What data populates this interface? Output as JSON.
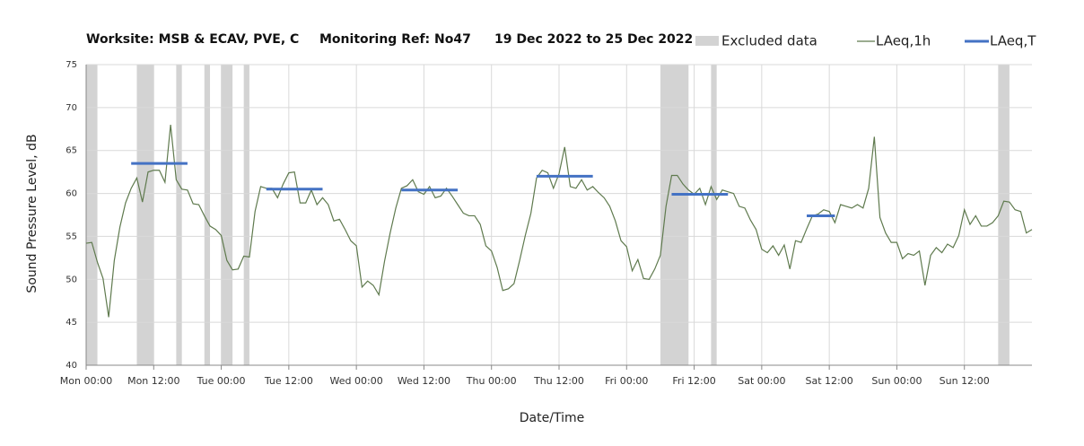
{
  "chart_data": {
    "type": "line",
    "title": [
      "Worksite: MSB & ECAV, PVE, C",
      "Monitoring Ref: No47",
      "19 Dec 2022 to 25 Dec 2022"
    ],
    "x_label": "Date/Time",
    "y_label": "Sound Pressure Level, dB",
    "xlim": [
      0,
      168
    ],
    "xticks": [
      {
        "value": 0,
        "label": "Mon 00:00"
      },
      {
        "value": 12,
        "label": "Mon 12:00"
      },
      {
        "value": 24,
        "label": "Tue 00:00"
      },
      {
        "value": 36,
        "label": "Tue 12:00"
      },
      {
        "value": 48,
        "label": "Wed 00:00"
      },
      {
        "value": 60,
        "label": "Wed 12:00"
      },
      {
        "value": 72,
        "label": "Thu 00:00"
      },
      {
        "value": 84,
        "label": "Thu 12:00"
      },
      {
        "value": 96,
        "label": "Fri 00:00"
      },
      {
        "value": 108,
        "label": "Fri 12:00"
      },
      {
        "value": 120,
        "label": "Sat 00:00"
      },
      {
        "value": 132,
        "label": "Sat 12:00"
      },
      {
        "value": 144,
        "label": "Sun 00:00"
      },
      {
        "value": 156,
        "label": "Sun 12:00"
      }
    ],
    "ylim": [
      40,
      75
    ],
    "yticks": [
      40,
      45,
      50,
      55,
      60,
      65,
      70,
      75
    ],
    "grid": true,
    "excluded": {
      "name": "Excluded data",
      "color": "#d3d3d3",
      "ranges": [
        [
          0,
          2
        ],
        [
          9,
          12
        ],
        [
          16,
          17
        ],
        [
          21,
          22
        ],
        [
          24,
          26
        ],
        [
          28,
          29
        ],
        [
          102,
          107
        ],
        [
          111,
          112
        ],
        [
          162,
          164
        ]
      ]
    },
    "series": [
      {
        "name": "LAeq,1h",
        "color": "#5f7a4e",
        "x": [
          0,
          1,
          2,
          3,
          4,
          5,
          6,
          7,
          8,
          9,
          10,
          11,
          12,
          13,
          14,
          15,
          16,
          17,
          18,
          19,
          20,
          21,
          22,
          23,
          24,
          25,
          26,
          27,
          28,
          29,
          30,
          31,
          32,
          33,
          34,
          35,
          36,
          37,
          38,
          39,
          40,
          41,
          42,
          43,
          44,
          45,
          46,
          47,
          48,
          49,
          50,
          51,
          52,
          53,
          54,
          55,
          56,
          57,
          58,
          59,
          60,
          61,
          62,
          63,
          64,
          65,
          66,
          67,
          68,
          69,
          70,
          71,
          72,
          73,
          74,
          75,
          76,
          77,
          78,
          79,
          80,
          81,
          82,
          83,
          84,
          85,
          86,
          87,
          88,
          89,
          90,
          91,
          92,
          93,
          94,
          95,
          96,
          97,
          98,
          99,
          100,
          101,
          102,
          103,
          104,
          105,
          106,
          107,
          108,
          109,
          110,
          111,
          112,
          113,
          114,
          115,
          116,
          117,
          118,
          119,
          120,
          121,
          122,
          123,
          124,
          125,
          126,
          127,
          128,
          129,
          130,
          131,
          132,
          133,
          134,
          135,
          136,
          137,
          138,
          139,
          140,
          141,
          142,
          143,
          144,
          145,
          146,
          147,
          148,
          149,
          150,
          151,
          152,
          153,
          154,
          155,
          156,
          157,
          158,
          159,
          160,
          161,
          162,
          163,
          164,
          165,
          166,
          167,
          168
        ],
        "values": [
          54.2,
          54.3,
          52,
          50.1,
          45.6,
          52.2,
          56.1,
          58.9,
          60.6,
          61.8,
          59,
          62.5,
          62.7,
          62.7,
          61.3,
          68,
          61.6,
          60.5,
          60.4,
          58.8,
          58.7,
          57.4,
          56.2,
          55.8,
          55.1,
          52.2,
          51.1,
          51.2,
          52.7,
          52.6,
          57.9,
          60.8,
          60.6,
          60.6,
          59.5,
          61.1,
          62.4,
          62.5,
          58.9,
          58.9,
          60.4,
          58.7,
          59.5,
          58.7,
          56.8,
          57,
          55.8,
          54.5,
          53.9,
          49.1,
          49.8,
          49.3,
          48.2,
          52.1,
          55.4,
          58.3,
          60.6,
          60.9,
          61.6,
          60.2,
          59.9,
          60.8,
          59.5,
          59.7,
          60.6,
          59.7,
          58.7,
          57.7,
          57.4,
          57.4,
          56.4,
          53.9,
          53.3,
          51.4,
          48.7,
          48.9,
          49.5,
          52.2,
          55.1,
          57.7,
          61.8,
          62.7,
          62.4,
          60.6,
          62.3,
          65.4,
          60.8,
          60.6,
          61.6,
          60.4,
          60.8,
          60.1,
          59.5,
          58.5,
          56.8,
          54.5,
          53.8,
          51,
          52.3,
          50.1,
          50,
          51.2,
          52.8,
          58.5,
          62.1,
          62.1,
          61.1,
          60.4,
          59.9,
          60.6,
          58.7,
          60.8,
          59.3,
          60.4,
          60.2,
          60,
          58.5,
          58.3,
          56.9,
          55.8,
          53.5,
          53.1,
          53.9,
          52.8,
          54,
          51.2,
          54.5,
          54.3,
          55.9,
          57.4,
          57.6,
          58.1,
          57.9,
          56.6,
          58.7,
          58.5,
          58.3,
          58.7,
          58.3,
          60.6,
          66.6,
          57.2,
          55.4,
          54.3,
          54.3,
          52.4,
          53,
          52.8,
          53.3,
          49.3,
          52.8,
          53.7,
          53.1,
          54.1,
          53.7,
          55.1,
          58.1,
          56.4,
          57.4,
          56.2,
          56.2,
          56.6,
          57.4,
          59.1,
          59,
          58.1,
          57.9,
          55.4,
          55.8
        ]
      }
    ],
    "periods": {
      "name": "LAeq,T",
      "color": "#4472c4",
      "ranges": [
        [
          8,
          18
        ],
        [
          32,
          42
        ],
        [
          56,
          66
        ],
        [
          80,
          90
        ],
        [
          104,
          114
        ],
        [
          128,
          133
        ]
      ],
      "values": [
        63.5,
        60.5,
        60.4,
        62,
        59.9,
        57.4
      ]
    }
  }
}
